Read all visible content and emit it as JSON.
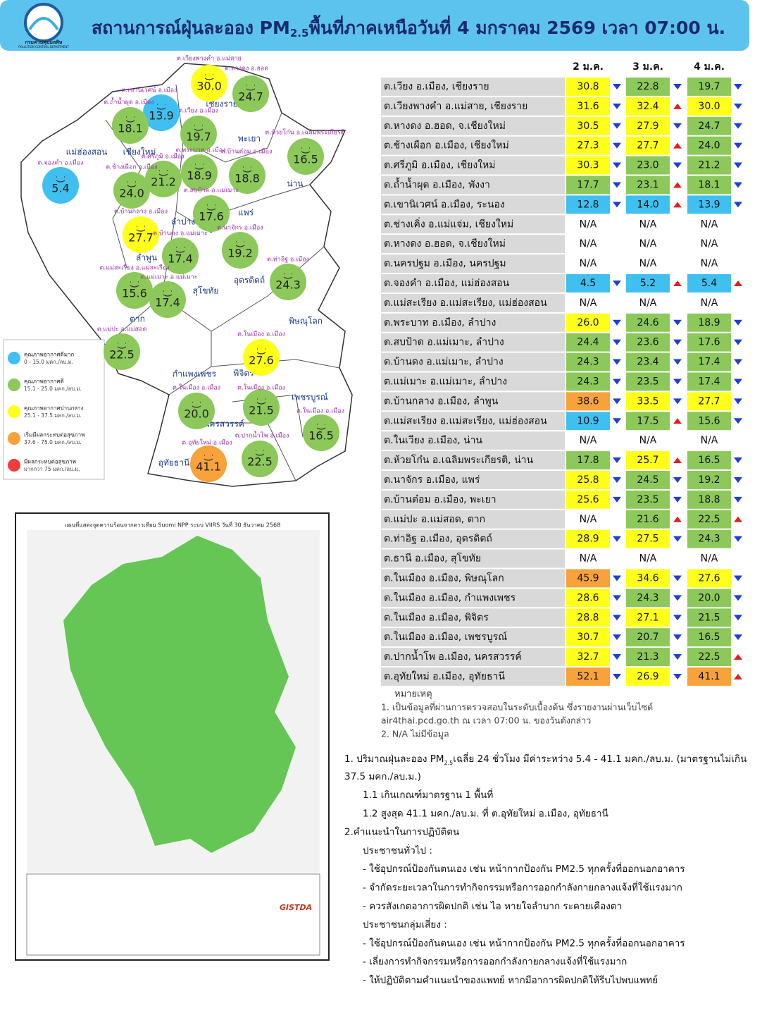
{
  "header": {
    "org_th": "กรมควบคุมมลพิษ",
    "org_en": "POLLUTION CONTROL DEPARTMENT",
    "title_pre": "สถานการณ์ฝุ่นละออง PM",
    "title_sub": "2.5",
    "title_post": "พื้นที่ภาคเหนือวันที่ 4 มกราคม 2569 เวลา 07:00 น."
  },
  "legend": [
    {
      "label": "คุณภาพอากาศดีมาก",
      "range": "0 - 15.0 มคก./ลบ.ม.",
      "color": "#3fc0f0"
    },
    {
      "label": "คุณภาพอากาศดี",
      "range": "15.1 - 25.0 มคก./ลบ.ม.",
      "color": "#8cc85a"
    },
    {
      "label": "คุณภาพอากาศปานกลาง",
      "range": "25.1 - 37.5 มคก./ลบ.ม.",
      "color": "#ffff1a"
    },
    {
      "label": "เริ่มมีผลกระทบต่อสุขภาพ",
      "range": "37.6 - 75.0 มคก./ลบ.ม.",
      "color": "#f7a23a"
    },
    {
      "label": "มีผลกระทบต่อสุขภาพ",
      "range": "มากกว่า 75 มคก./ลบ.ม.",
      "color": "#f03c3c"
    }
  ],
  "map": {
    "provinces": [
      "เชียงราย",
      "พะเยา",
      "แม่ฮ่องสอน",
      "เชียงใหม่",
      "น่าน",
      "ลำปาง",
      "แพร่",
      "ลำพูน",
      "อุตรดิตถ์",
      "สุโขทัย",
      "ตาก",
      "พิษณุโลก",
      "กำแพงเพชร",
      "พิจิตร",
      "เพชรบูรณ์",
      "นครสวรรค์",
      "อุทัยธานี"
    ],
    "stations": [
      {
        "label": "ต.เวียงพางคำ อ.แม่สาย",
        "value": "30.0"
      },
      {
        "label": "ต.หางดง อ.ฮอด",
        "value": "24.7"
      },
      {
        "label": "ต.เขานิเวศน์ อ.เมือง",
        "value": "13.9"
      },
      {
        "label": "ต.ถ้ำน้ำผุด อ.เมือง",
        "value": "18.1"
      },
      {
        "label": "ต.เวียง อ.เมือง",
        "value": "19.7"
      },
      {
        "label": "ต.ห้วยโก๋น อ.เฉลิมพระเกียรติ",
        "value": "16.5"
      },
      {
        "label": "ต.พระบาท อ.เมือง",
        "value": "18.9"
      },
      {
        "label": "ต.บ้านต๋อม อ.เมือง",
        "value": "18.8"
      },
      {
        "label": "ต.ศรีภูมิ อ.เมือง",
        "value": "21.2"
      },
      {
        "label": "ต.ช้างเผือก อ.เมือง",
        "value": "24.0"
      },
      {
        "label": "ต.จองคำ อ.เมือง",
        "value": "5.4"
      },
      {
        "label": "ต.สบป้าด อ.แม่เมาะ",
        "value": "17.6"
      },
      {
        "label": "ต.บ้านกลาง อ.เมือง",
        "value": "27.7"
      },
      {
        "label": "ต.บ้านดง อ.แม่เมาะ",
        "value": "17.4"
      },
      {
        "label": "ต.นาจักร อ.เมือง",
        "value": "19.2"
      },
      {
        "label": "ต.ท่าอิฐ อ.เมือง",
        "value": "24.3"
      },
      {
        "label": "ต.แม่สะเรียง อ.แม่สะเรียง",
        "value": "15.6"
      },
      {
        "label": "ต.แม่เมาะ อ.แม่เมาะ",
        "value": "17.4"
      },
      {
        "label": "ต.แม่ปะ อ.แม่สอด",
        "value": "22.5"
      },
      {
        "label": "ต.ในเมือง อ.เมือง",
        "value": "27.6"
      },
      {
        "label": "ต.ในเมือง อ.เมือง",
        "value": "20.0"
      },
      {
        "label": "ต.ในเมือง อ.เมือง",
        "value": "21.5"
      },
      {
        "label": "ต.ในเมือง อ.เมือง",
        "value": "16.5"
      },
      {
        "label": "ต.ปากน้ำโพ อ.เมือง",
        "value": "22.5"
      },
      {
        "label": "ต.อุทัยใหม่ อ.เมือง",
        "value": "41.1"
      }
    ]
  },
  "satellite_map": {
    "title": "แผนที่แสดงจุดความร้อนจากดาวเทียม Suomi NPP ระบบ VIIRS  วันที่ 30 ธันวาคม 2568",
    "logo": "GISTDA"
  },
  "table": {
    "columns": [
      "2 ม.ค.",
      "3 ม.ค.",
      "4 ม.ค."
    ],
    "rows": [
      {
        "name": "ต.เวียง อ.เมือง, เชียงราย",
        "values": [
          "30.8",
          "22.8",
          "19.7"
        ],
        "trends": [
          "down",
          "down",
          "down"
        ]
      },
      {
        "name": "ต.เวียงพางคำ อ.แม่สาย, เชียงราย",
        "values": [
          "31.6",
          "32.4",
          "30.0"
        ],
        "trends": [
          "down",
          "up",
          "down"
        ]
      },
      {
        "name": "ต.หางดง อ.ฮอด, จ.เชียงใหม่",
        "values": [
          "30.5",
          "27.9",
          "24.7"
        ],
        "trends": [
          "down",
          "down",
          "down"
        ]
      },
      {
        "name": "ต.ช้างเผือก อ.เมือง, เชียงใหม่",
        "values": [
          "27.3",
          "27.7",
          "24.0"
        ],
        "trends": [
          "down",
          "up",
          "down"
        ]
      },
      {
        "name": "ต.ศรีภูมิ อ.เมือง, เชียงใหม่",
        "values": [
          "30.3",
          "23.0",
          "21.2"
        ],
        "trends": [
          "down",
          "down",
          "down"
        ]
      },
      {
        "name": "ต.ถ้ำน้ำผุด อ.เมือง, พังงา",
        "values": [
          "17.7",
          "23.1",
          "18.1"
        ],
        "trends": [
          "down",
          "up",
          "down"
        ]
      },
      {
        "name": "ต.เขานิเวศน์  อ.เมือง, ระนอง",
        "values": [
          "12.8",
          "14.0",
          "13.9"
        ],
        "trends": [
          "down",
          "up",
          "down"
        ]
      },
      {
        "name": "ต.ช่างเคิ่ง อ.แม่แจ่ม, เชียงใหม่",
        "values": [
          "N/A",
          "N/A",
          "N/A"
        ],
        "trends": [
          null,
          null,
          null
        ]
      },
      {
        "name": "ต.หางดง อ.ฮอด, จ.เชียงใหม่",
        "values": [
          "N/A",
          "N/A",
          "N/A"
        ],
        "trends": [
          null,
          null,
          null
        ]
      },
      {
        "name": "ต.นครปฐม อ.เมือง, นครปฐม",
        "values": [
          "N/A",
          "N/A",
          "N/A"
        ],
        "trends": [
          null,
          null,
          null
        ]
      },
      {
        "name": "ต.จองคำ อ.เมือง, แม่ฮ่องสอน",
        "values": [
          "4.5",
          "5.2",
          "5.4"
        ],
        "trends": [
          "down",
          "up",
          "up"
        ]
      },
      {
        "name": "ต.แม่สะเรียง อ.แม่สะเรียง, แม่ฮ่องสอน",
        "values": [
          "N/A",
          "N/A",
          "N/A"
        ],
        "trends": [
          null,
          null,
          null
        ]
      },
      {
        "name": "ต.พระบาท อ.เมือง, ลำปาง",
        "values": [
          "26.0",
          "24.6",
          "18.9"
        ],
        "trends": [
          "down",
          "down",
          "down"
        ]
      },
      {
        "name": "ต.สบป้าด อ.แม่เมาะ, ลำปาง",
        "values": [
          "24.4",
          "23.6",
          "17.6"
        ],
        "trends": [
          "down",
          "down",
          "down"
        ]
      },
      {
        "name": "ต.บ้านดง อ.แม่เมาะ, ลำปาง",
        "values": [
          "24.3",
          "23.4",
          "17.4"
        ],
        "trends": [
          "down",
          "down",
          "down"
        ]
      },
      {
        "name": "ต.แม่เมาะ อ.แม่เมาะ, ลำปาง",
        "values": [
          "24.3",
          "23.5",
          "17.4"
        ],
        "trends": [
          "down",
          "down",
          "down"
        ]
      },
      {
        "name": "ต.บ้านกลาง อ.เมือง, ลำพูน",
        "values": [
          "38.6",
          "33.5",
          "27.7"
        ],
        "trends": [
          "down",
          "down",
          "down"
        ]
      },
      {
        "name": "ต.แม่สะเรียง อ.แม่สะเรียง, แม่ฮ่องสอน",
        "values": [
          "10.9",
          "17.5",
          "15.6"
        ],
        "trends": [
          "down",
          "up",
          "down"
        ]
      },
      {
        "name": "ต.ในเวียง อ.เมือง, น่าน",
        "values": [
          "N/A",
          "N/A",
          "N/A"
        ],
        "trends": [
          null,
          null,
          null
        ]
      },
      {
        "name": "ต.ห้วยโก๋น อ.เฉลิมพระเกียรติ, น่าน",
        "values": [
          "17.8",
          "25.7",
          "16.5"
        ],
        "trends": [
          "down",
          "up",
          "down"
        ]
      },
      {
        "name": "ต.นาจักร อ.เมือง, แพร่",
        "values": [
          "25.8",
          "24.5",
          "19.2"
        ],
        "trends": [
          "down",
          "down",
          "down"
        ]
      },
      {
        "name": "ต.บ้านต๋อม อ.เมือง, พะเยา",
        "values": [
          "25.6",
          "23.5",
          "18.8"
        ],
        "trends": [
          "down",
          "down",
          "down"
        ]
      },
      {
        "name": "ต.แม่ปะ อ.แม่สอด, ตาก",
        "values": [
          "N/A",
          "21.6",
          "22.5"
        ],
        "trends": [
          null,
          "up",
          "up"
        ]
      },
      {
        "name": "ต.ท่าอิฐ อ.เมือง, อุตรดิตถ์",
        "values": [
          "28.9",
          "27.5",
          "24.3"
        ],
        "trends": [
          "down",
          "down",
          "down"
        ]
      },
      {
        "name": "ต.ธานี อ.เมือง, สุโขทัย",
        "values": [
          "N/A",
          "N/A",
          "N/A"
        ],
        "trends": [
          null,
          null,
          null
        ]
      },
      {
        "name": "ต.ในเมือง อ.เมือง, พิษณุโลก",
        "values": [
          "45.9",
          "34.6",
          "27.6"
        ],
        "trends": [
          "down",
          "down",
          "down"
        ]
      },
      {
        "name": "ต.ในเมือง อ.เมือง, กำแพงเพชร",
        "values": [
          "28.6",
          "24.3",
          "20.0"
        ],
        "trends": [
          "down",
          "down",
          "down"
        ]
      },
      {
        "name": "ต.ในเมือง อ.เมือง, พิจิตร",
        "values": [
          "28.8",
          "27.1",
          "21.5"
        ],
        "trends": [
          "down",
          "down",
          "down"
        ]
      },
      {
        "name": "ต.ในเมือง อ.เมือง, เพชรบูรณ์",
        "values": [
          "30.7",
          "20.7",
          "16.5"
        ],
        "trends": [
          "down",
          "down",
          "down"
        ]
      },
      {
        "name": "ต.ปากน้ำโพ อ.เมือง, นครสวรรค์",
        "values": [
          "32.7",
          "21.3",
          "22.5"
        ],
        "trends": [
          "down",
          "down",
          "up"
        ]
      },
      {
        "name": "ต.อุทัยใหม่ อ.เมือง, อุทัยธานี",
        "values": [
          "52.1",
          "26.9",
          "41.1"
        ],
        "trends": [
          "down",
          "down",
          "up"
        ]
      }
    ]
  },
  "notes": {
    "title": "หมายเหตุ",
    "lines": [
      "1. เป็นข้อมูลที่ผ่านการตรวจสอบในระดับเบื้องต้น  ซึ่งรายงานผ่านเว็บไซต์",
      "air4thai.pcd.go.th  ณ  เวลา 07:00  น.  ของวันดังกล่าว",
      "2.  N/A  ไม่มีข้อมูล"
    ]
  },
  "summary": {
    "line1_pre": "1. ปริมาณฝุ่นละออง PM",
    "line1_sub": "2.5",
    "line1_post": "เฉลี่ย 24 ชั่วโมง มีค่าระหว่าง 5.4 - 41.1 มคก./ลบ.ม. (มาตรฐานไม่เกิน",
    "line1_cont": "37.5 มคก./ลบ.ม.)",
    "lines": [
      "1.1 เกินเกณฑ์มาตรฐาน 1 พื้นที่",
      "1.2 สูงสุด 41.1 มคก./ลบ.ม. ที่ ต.อุทัยใหม่ อ.เมือง, อุทัยธานี",
      "2.คำแนะนำในการปฏิบัติตน",
      "ประชาชนทั่วไป :",
      "-  ใช้อุปกรณ์ป้องกันตนเอง  เช่น  หน้ากากป้องกัน  PM2.5  ทุกครั้งที่ออกนอกอาคาร",
      "-  จำกัดระยะเวลาในการทำกิจกรรมหรือการออกกำลังกายกลางแจ้งที่ใช้แรงมาก",
      "-  ควรสังเกตอาการผิดปกติ  เช่น  ไอ  หายใจลำบาก  ระคายเคืองตา",
      "ประชาชนกลุ่มเสี่ยง :",
      "-  ใช้อุปกรณ์ป้องกันตนเอง  เช่น  หน้ากากป้องกัน  PM2.5  ทุกครั้งที่ออกนอกอาคาร",
      "-  เลี่ยงการทำกิจกรรมหรือการออกกำลังกายกลางแจ้งที่ใช้แรงมาก",
      "-  ให้ปฏิบัติตามคำแนะนำของแพทย์  หากมีอาการผิดปกติให้รีบไปพบแพทย์"
    ]
  }
}
